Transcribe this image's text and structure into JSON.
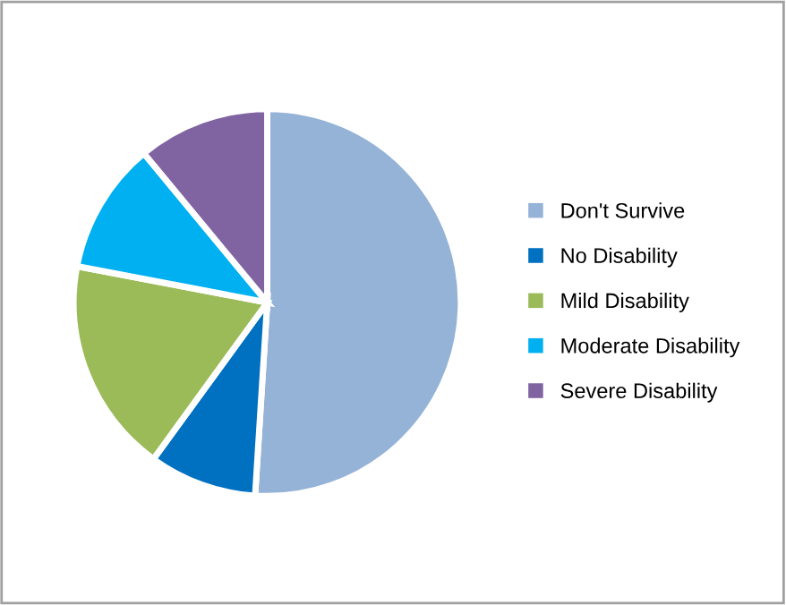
{
  "chart_data": {
    "type": "pie",
    "categories": [
      "Don't Survive",
      "No Disability",
      "Mild Disability",
      "Moderate Disability",
      "Severe Disability"
    ],
    "values": [
      51,
      9,
      18,
      11,
      11
    ],
    "colors": [
      "#95b3d7",
      "#0070c0",
      "#9bbb59",
      "#00b0f0",
      "#8064a2"
    ],
    "legend": "right"
  }
}
